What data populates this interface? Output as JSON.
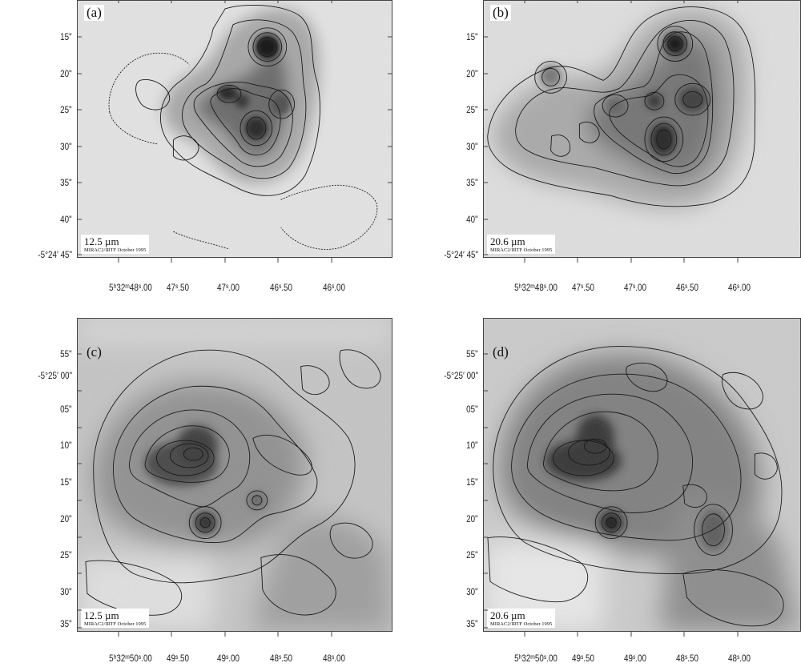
{
  "panels": [
    {
      "id": "a",
      "label": "(a)",
      "wavelength": "12.5 µm",
      "credit": "MIRAC2/IRTF October 1995",
      "dec_ticks": [
        "15\"",
        "20\"",
        "25\"",
        "30\"",
        "35\"",
        "40\"",
        "-5°24′ 45\""
      ],
      "ra_ticks": [
        "5ʰ32ᵐ48ˢ.00",
        "47ˢ.50",
        "47ˢ.00",
        "46ˢ.50",
        "46ˢ.00"
      ]
    },
    {
      "id": "b",
      "label": "(b)",
      "wavelength": "20.6 µm",
      "credit": "MIRAC2/IRTF October 1995",
      "dec_ticks": [
        "15\"",
        "20\"",
        "25\"",
        "30\"",
        "35\"",
        "40\"",
        "-5°24′ 45\""
      ],
      "ra_ticks": [
        "5ʰ32ᵐ48ˢ.00",
        "47ˢ.50",
        "47ˢ.00",
        "46ˢ.50",
        "46ˢ.00"
      ]
    },
    {
      "id": "c",
      "label": "(c)",
      "wavelength": "12.5 µm",
      "credit": "MIRAC2/IRTF October 1995",
      "dec_ticks": [
        "55\"",
        "-5°25′ 00\"",
        "05\"",
        "10\"",
        "15\"",
        "20\"",
        "25\"",
        "30\"",
        "35\""
      ],
      "ra_ticks": [
        "5ʰ32ᵐ50ˢ.00",
        "49ˢ.50",
        "49ˢ.00",
        "48ˢ.50",
        "48ˢ.00"
      ]
    },
    {
      "id": "d",
      "label": "(d)",
      "wavelength": "20.6 µm",
      "credit": "MIRAC2/IRTF October 1995",
      "dec_ticks": [
        "55\"",
        "-5°25′ 00\"",
        "05\"",
        "10\"",
        "15\"",
        "20\"",
        "25\"",
        "30\"",
        "35\""
      ],
      "ra_ticks": [
        "5ʰ32ᵐ50ˢ.00",
        "49ˢ.50",
        "49ˢ.00",
        "48ˢ.50",
        "48ˢ.00"
      ]
    }
  ],
  "colors": {
    "background": "#ffffff",
    "contour": "#1a1a1a",
    "sky": "#d8d8d8"
  }
}
